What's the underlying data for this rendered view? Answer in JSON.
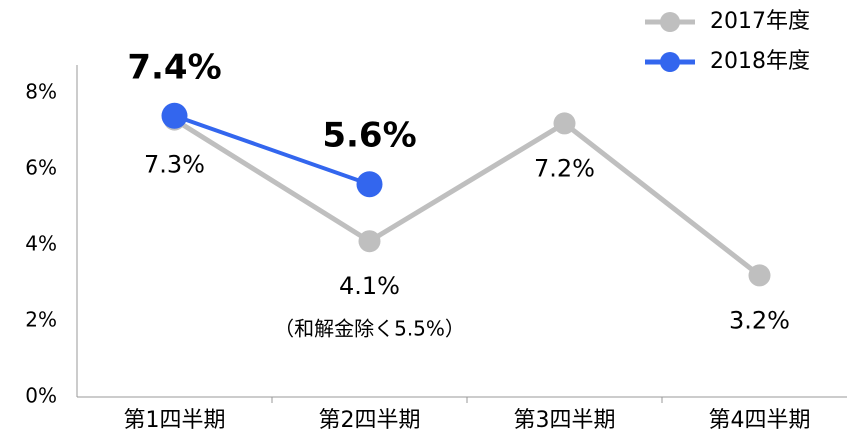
{
  "chart_data": {
    "type": "line",
    "categories": [
      "第1四半期",
      "第2四半期",
      "第3四半期",
      "第4四半期"
    ],
    "series": [
      {
        "name": "2017年度",
        "color": "#bfbfbf",
        "values": [
          7.3,
          4.1,
          7.2,
          3.2
        ],
        "value_labels": [
          "7.3%",
          "4.1%",
          "7.2%",
          "3.2%"
        ]
      },
      {
        "name": "2018年度",
        "color": "#3366ee",
        "values": [
          7.4,
          5.6,
          null,
          null
        ],
        "value_labels": [
          "7.4%",
          "5.6%",
          null,
          null
        ]
      }
    ],
    "annotations": [
      "（和解金除く5.5%）"
    ],
    "ylim": [
      0,
      8
    ],
    "yticks": [
      {
        "value": 0,
        "label": "0%"
      },
      {
        "value": 2,
        "label": "2%"
      },
      {
        "value": 4,
        "label": "4%"
      },
      {
        "value": 6,
        "label": "6%"
      },
      {
        "value": 8,
        "label": "8%"
      }
    ],
    "grid": false,
    "legend": "top-right"
  }
}
